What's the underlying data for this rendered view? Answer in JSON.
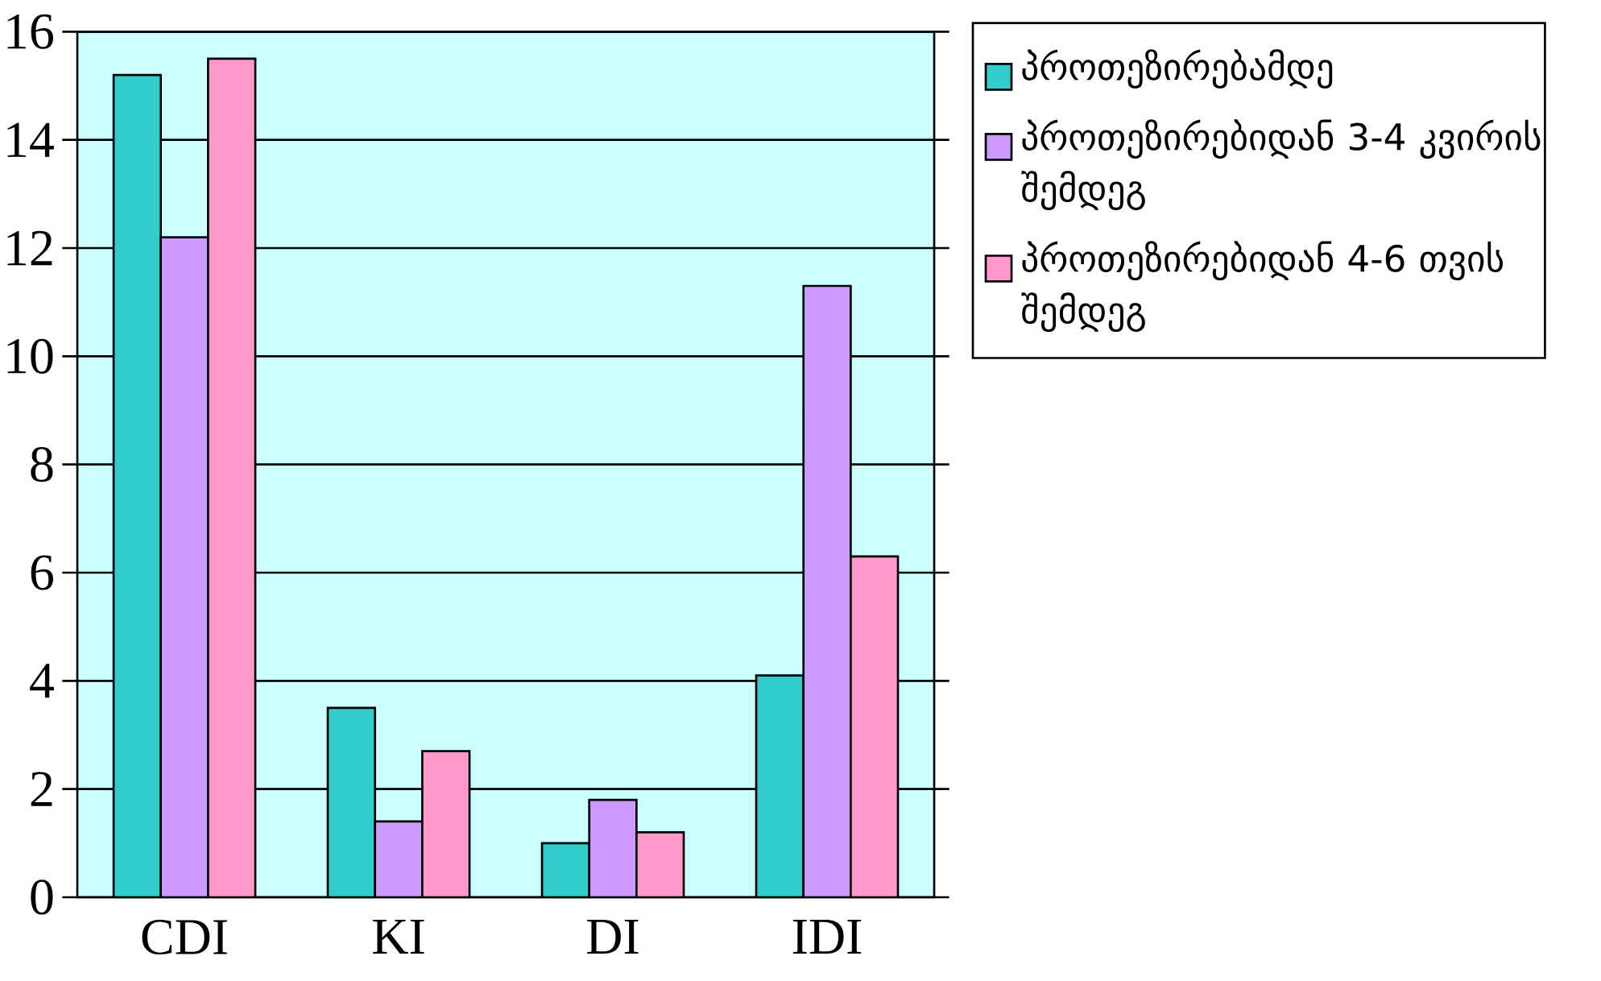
{
  "chart_data": {
    "type": "bar",
    "categories": [
      "CDI",
      "KI",
      "DI",
      "IDI"
    ],
    "series": [
      {
        "name": "პროთეზირებამდე",
        "color": "#33cccc",
        "values": [
          15.2,
          3.5,
          1.0,
          4.1
        ]
      },
      {
        "name": "პროთეზირებიდან 3-4 კვირის შემდეგ",
        "color": "#cc99ff",
        "values": [
          12.2,
          1.4,
          1.8,
          11.3
        ]
      },
      {
        "name": "პროთეზირებიდან 4-6 თვის შემდეგ",
        "color": "#ff99cc",
        "values": [
          15.5,
          2.7,
          1.2,
          6.3
        ]
      }
    ],
    "ylim": [
      0,
      16
    ],
    "yticks": [
      0,
      2,
      4,
      6,
      8,
      10,
      12,
      14,
      16
    ],
    "grid": "y",
    "legend": "right"
  }
}
